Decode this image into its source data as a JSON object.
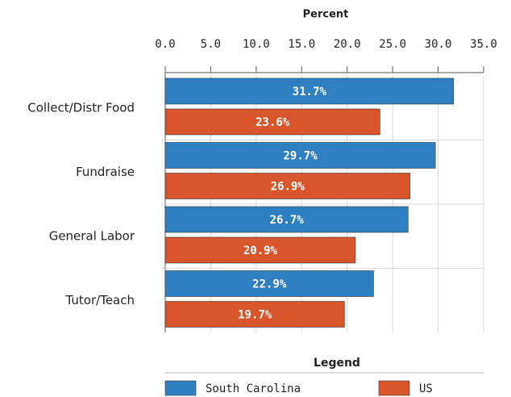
{
  "chart_data": {
    "type": "bar",
    "orientation": "horizontal",
    "x_label": "Percent",
    "legend_title": "Legend",
    "categories": [
      "Collect/Distr Food",
      "Fundraise",
      "General Labor",
      "Tutor/Teach"
    ],
    "series": [
      {
        "name": "South Carolina",
        "color": "#2f7fc1",
        "values": [
          31.7,
          29.7,
          26.7,
          22.9
        ],
        "value_labels": [
          "31.7%",
          "29.7%",
          "26.7%",
          "22.9%"
        ]
      },
      {
        "name": "US",
        "color": "#d9552b",
        "values": [
          23.6,
          26.9,
          20.9,
          19.7
        ],
        "value_labels": [
          "23.6%",
          "26.9%",
          "20.9%",
          "19.7%"
        ]
      }
    ],
    "xlim": [
      0,
      35
    ],
    "xticks": [
      {
        "value": 0,
        "label": "0.0"
      },
      {
        "value": 5,
        "label": "5.0"
      },
      {
        "value": 10,
        "label": "10.0"
      },
      {
        "value": 15,
        "label": "15.0"
      },
      {
        "value": 20,
        "label": "20.0"
      },
      {
        "value": 25,
        "label": "25.0"
      },
      {
        "value": 30,
        "label": "30.0"
      },
      {
        "value": 35,
        "label": "35.0"
      }
    ],
    "grid": true
  }
}
